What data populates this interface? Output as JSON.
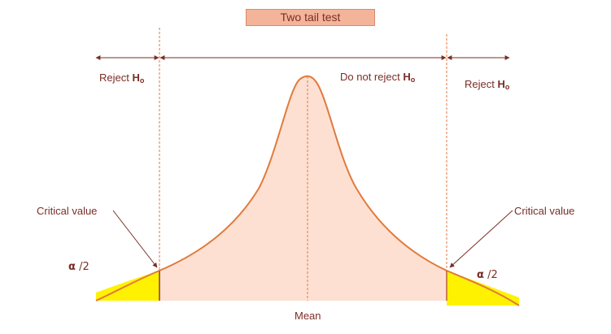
{
  "title": "Two tail test",
  "regions": {
    "reject_left": {
      "prefix": "Reject ",
      "symbol": "H",
      "subscript": "o"
    },
    "do_not_reject": {
      "prefix": "Do not reject ",
      "symbol": "H",
      "subscript": "o"
    },
    "reject_right": {
      "prefix": "Reject ",
      "symbol": "H",
      "subscript": "o"
    }
  },
  "critical_value_left": "Critical value",
  "critical_value_right": "Critical value",
  "alpha_left": {
    "symbol": "α",
    "rest": " /2"
  },
  "alpha_right": {
    "symbol": "α",
    "rest": " /2"
  },
  "mean_label": "Mean",
  "colors": {
    "curve_stroke": "#e07a3c",
    "curve_fill": "#fde0d2",
    "tail_fill": "#fff200",
    "guide_line": "#e07a3c",
    "arrow": "#7a2e26",
    "text": "#7a2e26",
    "title_fill": "#f4b49a"
  }
}
